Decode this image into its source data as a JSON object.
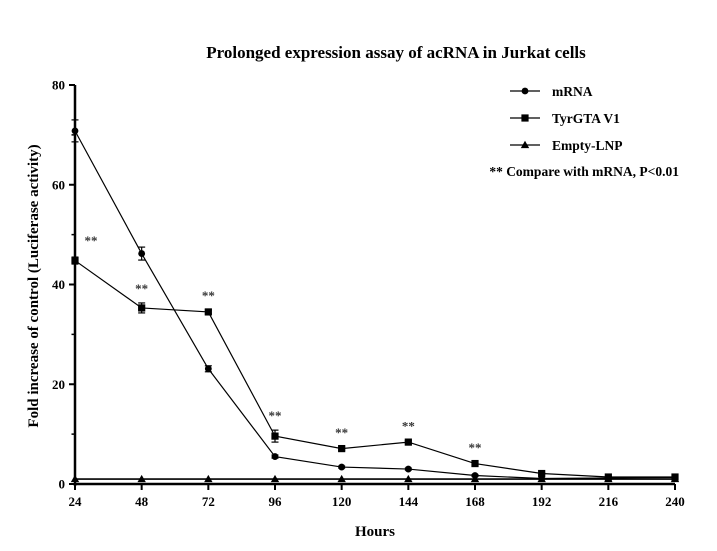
{
  "chart_data": {
    "type": "line",
    "title": "Prolonged expression assay of acRNA in Jurkat cells",
    "xlabel": "Hours",
    "ylabel": "Fold increase of control (Luciferase activity)",
    "x": [
      24,
      48,
      72,
      96,
      120,
      144,
      168,
      192,
      216,
      240
    ],
    "xlim": [
      24,
      240
    ],
    "ylim": [
      0,
      80
    ],
    "yticks": [
      0,
      20,
      40,
      60,
      80
    ],
    "series": [
      {
        "name": "mRNA",
        "marker": "circle",
        "values": [
          70.8,
          46.2,
          23.1,
          5.5,
          3.4,
          3.0,
          1.7,
          1.1,
          1.2,
          1.3
        ],
        "errors": [
          2.2,
          1.3,
          0.6,
          0.3,
          0.2,
          0.2,
          0.2,
          0.1,
          0.1,
          0.1
        ]
      },
      {
        "name": "TyrGTA V1",
        "marker": "square",
        "values": [
          44.8,
          35.3,
          34.5,
          9.6,
          7.1,
          8.4,
          4.1,
          2.1,
          1.4,
          1.4
        ],
        "errors": [
          0.7,
          1.0,
          0.4,
          1.2,
          0.3,
          0.3,
          0.3,
          0.2,
          0.1,
          0.1
        ]
      },
      {
        "name": "Empty-LNP",
        "marker": "triangle",
        "values": [
          1.0,
          1.0,
          1.0,
          1.0,
          1.0,
          1.0,
          1.0,
          1.0,
          1.0,
          1.0
        ],
        "errors": [
          0,
          0,
          0,
          0,
          0,
          0,
          0,
          0,
          0,
          0
        ]
      }
    ],
    "significance": {
      "label": "**",
      "x": [
        24,
        48,
        72,
        96,
        120,
        144,
        168
      ]
    },
    "legend": {
      "placement": "top-right",
      "note": "** Compare with mRNA, P<0.01"
    },
    "grid": false
  }
}
